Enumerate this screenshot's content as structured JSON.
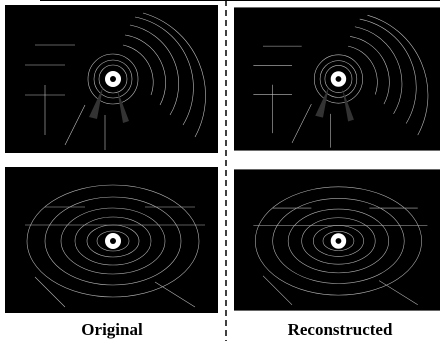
{
  "captions": {
    "left": "Original",
    "right": "Reconstructed"
  }
}
